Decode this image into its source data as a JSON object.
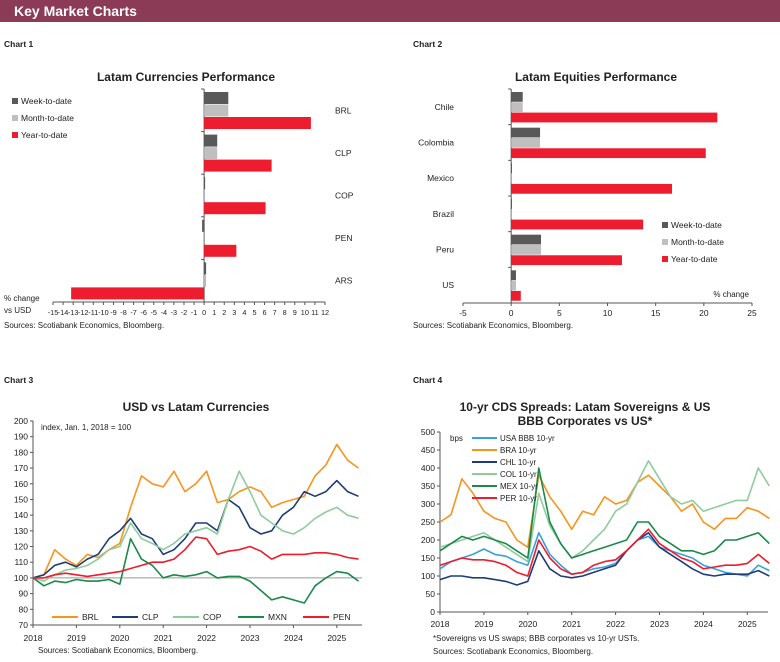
{
  "header": {
    "title": "Key Market Charts"
  },
  "colors": {
    "header": "#8c3b57",
    "week": "#595959",
    "month": "#bfbfbf",
    "year": "#ed1c2e"
  },
  "chart_data": [
    {
      "label": "Chart 1",
      "type": "bar",
      "orientation": "horizontal",
      "title": "Latam Currencies Performance",
      "categories": [
        "BRL",
        "CLP",
        "COP",
        "PEN",
        "ARS"
      ],
      "series": [
        {
          "name": "Week-to-date",
          "values": [
            2.4,
            1.3,
            0.1,
            -0.2,
            0.2
          ]
        },
        {
          "name": "Month-to-date",
          "values": [
            2.4,
            1.3,
            0.0,
            -0.1,
            0.2
          ]
        },
        {
          "name": "Year-to-date",
          "values": [
            10.6,
            6.7,
            6.1,
            3.2,
            -13.2
          ]
        }
      ],
      "xlim": [
        -15,
        12
      ],
      "xticks": [
        "-15",
        "-14",
        "-13",
        "-12",
        "-11",
        "-10",
        "-9",
        "-8",
        "-7",
        "-6",
        "-5",
        "-4",
        "-3",
        "-2",
        "-1",
        "0",
        "1",
        "2",
        "3",
        "4",
        "5",
        "6",
        "7",
        "8",
        "9",
        "10",
        "11",
        "12"
      ],
      "xlabel_lines": [
        "% change",
        "vs USD"
      ],
      "legend": "top-left",
      "source": "Sources: Scotiabank Economics, Bloomberg."
    },
    {
      "label": "Chart 2",
      "type": "bar",
      "orientation": "horizontal",
      "title": "Latam Equities Performance",
      "categories": [
        "Chile",
        "Colombia",
        "Mexico",
        "Brazil",
        "Peru",
        "US"
      ],
      "series": [
        {
          "name": "Week-to-date",
          "values": [
            1.2,
            3.0,
            0.0,
            0.0,
            3.1,
            0.5
          ]
        },
        {
          "name": "Month-to-date",
          "values": [
            1.2,
            3.0,
            0.0,
            0.0,
            3.1,
            0.5
          ]
        },
        {
          "name": "Year-to-date",
          "values": [
            21.4,
            20.2,
            16.7,
            13.7,
            11.5,
            1.0
          ]
        }
      ],
      "xlim": [
        -5,
        25
      ],
      "xticks": [
        "-5",
        "0",
        "5",
        "10",
        "15",
        "20",
        "25"
      ],
      "xlabel": "% change",
      "legend": "bottom-right",
      "source": "Sources: Scotiabank Economics, Bloomberg."
    },
    {
      "label": "Chart 3",
      "type": "line",
      "title": "USD vs Latam Currencies",
      "annotation": "index, Jan. 1, 2018 = 100",
      "x_start": 2018,
      "x_step_years": 0.25,
      "xticks": [
        "2018",
        "2019",
        "2020",
        "2021",
        "2022",
        "2023",
        "2024",
        "2025"
      ],
      "ylim": [
        70,
        200
      ],
      "yticks": [
        "70",
        "80",
        "90",
        "100",
        "110",
        "120",
        "130",
        "140",
        "150",
        "160",
        "170",
        "180",
        "190",
        "200"
      ],
      "reference_line": 100,
      "legend": "bottom",
      "series": [
        {
          "name": "BRL",
          "color": "#f7941d",
          "values": [
            100,
            102,
            118,
            112,
            108,
            115,
            113,
            118,
            122,
            145,
            165,
            160,
            158,
            168,
            155,
            160,
            168,
            148,
            150,
            155,
            158,
            155,
            145,
            148,
            150,
            152,
            165,
            172,
            185,
            175,
            170
          ]
        },
        {
          "name": "CLP",
          "color": "#1f3c78",
          "values": [
            100,
            102,
            108,
            110,
            107,
            112,
            115,
            125,
            130,
            138,
            128,
            125,
            115,
            118,
            125,
            135,
            135,
            130,
            150,
            145,
            132,
            128,
            130,
            140,
            145,
            155,
            152,
            155,
            162,
            155,
            152
          ]
        },
        {
          "name": "COP",
          "color": "#8fcc9c",
          "values": [
            100,
            98,
            102,
            105,
            106,
            108,
            112,
            118,
            120,
            135,
            125,
            122,
            118,
            122,
            128,
            130,
            132,
            128,
            150,
            168,
            155,
            140,
            135,
            130,
            128,
            132,
            138,
            142,
            145,
            140,
            138
          ]
        },
        {
          "name": "MXN",
          "color": "#1a8a4a",
          "values": [
            100,
            95,
            98,
            97,
            99,
            98,
            98,
            99,
            96,
            125,
            112,
            108,
            100,
            102,
            101,
            102,
            104,
            100,
            101,
            101,
            98,
            92,
            86,
            88,
            86,
            84,
            95,
            100,
            104,
            103,
            98
          ]
        },
        {
          "name": "PEN",
          "color": "#ed1c2e",
          "values": [
            100,
            100,
            102,
            103,
            102,
            101,
            102,
            103,
            104,
            106,
            108,
            110,
            110,
            112,
            118,
            126,
            125,
            115,
            117,
            118,
            120,
            117,
            112,
            115,
            115,
            115,
            116,
            116,
            115,
            113,
            112
          ]
        }
      ],
      "source": "Sources: Scotiabank Economics, Bloomberg."
    },
    {
      "label": "Chart 4",
      "type": "line",
      "title_lines": [
        "10-yr CDS Spreads: Latam Sovereigns & US",
        "BBB Corporates vs US*"
      ],
      "ylabel": "bps",
      "x_start": 2018,
      "x_step_years": 0.25,
      "xticks": [
        "2018",
        "2019",
        "2020",
        "2021",
        "2022",
        "2023",
        "2024",
        "2025"
      ],
      "ylim": [
        0,
        500
      ],
      "yticks": [
        "0",
        "50",
        "100",
        "150",
        "200",
        "250",
        "300",
        "350",
        "400",
        "450",
        "500"
      ],
      "legend": "top-left",
      "series": [
        {
          "name": "USA BBB 10-yr",
          "color": "#3aa0dc",
          "values": [
            120,
            140,
            150,
            160,
            175,
            160,
            155,
            140,
            130,
            220,
            160,
            130,
            105,
            110,
            120,
            125,
            135,
            170,
            200,
            210,
            180,
            170,
            160,
            150,
            130,
            120,
            110,
            105,
            100,
            130,
            115
          ]
        },
        {
          "name": "BRA 10-yr",
          "color": "#f7941d",
          "values": [
            250,
            270,
            370,
            330,
            280,
            260,
            250,
            200,
            180,
            380,
            320,
            280,
            230,
            280,
            270,
            320,
            300,
            310,
            360,
            380,
            350,
            320,
            280,
            300,
            250,
            230,
            260,
            260,
            290,
            280,
            260
          ]
        },
        {
          "name": "CHL 10-yr",
          "color": "#1f3c78",
          "values": [
            90,
            100,
            100,
            95,
            95,
            90,
            85,
            75,
            85,
            170,
            120,
            100,
            95,
            100,
            110,
            120,
            130,
            170,
            200,
            220,
            180,
            160,
            140,
            120,
            105,
            100,
            105,
            105,
            105,
            115,
            100
          ]
        },
        {
          "name": "COL 10-yr",
          "color": "#8fcc9c",
          "values": [
            180,
            190,
            200,
            210,
            220,
            200,
            180,
            160,
            140,
            330,
            240,
            190,
            150,
            170,
            200,
            230,
            280,
            300,
            360,
            420,
            370,
            320,
            300,
            310,
            280,
            290,
            300,
            310,
            310,
            400,
            350
          ]
        },
        {
          "name": "MEX 10-yr",
          "color": "#1a8a4a",
          "values": [
            170,
            190,
            210,
            200,
            210,
            200,
            190,
            170,
            150,
            400,
            250,
            190,
            150,
            160,
            170,
            180,
            190,
            200,
            250,
            250,
            210,
            190,
            170,
            170,
            160,
            170,
            200,
            200,
            210,
            220,
            190
          ]
        },
        {
          "name": "PER 10-yr",
          "color": "#ed1c2e",
          "values": [
            130,
            140,
            150,
            145,
            145,
            140,
            130,
            110,
            100,
            200,
            150,
            120,
            105,
            110,
            130,
            140,
            145,
            170,
            200,
            230,
            190,
            170,
            150,
            140,
            120,
            125,
            130,
            130,
            135,
            160,
            135
          ]
        }
      ],
      "footnote": "*Sovereigns vs US swaps; BBB corporates vs 10-yr USTs.",
      "source": "Sources: Scotiabank Economics, Bloomberg."
    }
  ]
}
